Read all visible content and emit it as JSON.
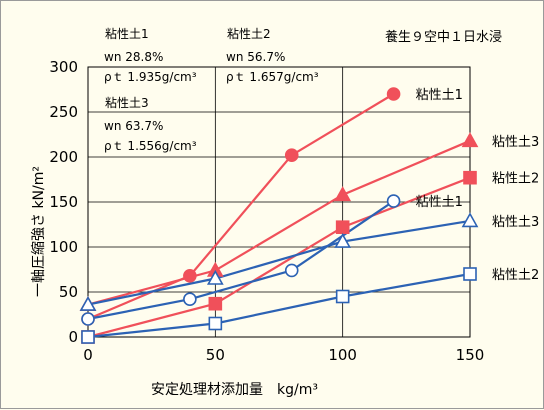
{
  "chart_data": {
    "type": "line",
    "title": "養生９空中１日水浸",
    "xlabel": "安定処理材添加量　kg/m³",
    "ylabel": "一軸圧縮強さ kN/m²",
    "xlim": [
      0,
      150
    ],
    "ylim": [
      0,
      300
    ],
    "xticks": [
      "0",
      "50",
      "100",
      "150"
    ],
    "yticks": [
      "0",
      "50",
      "100",
      "150",
      "200",
      "250",
      "300"
    ],
    "grid": true,
    "colors": {
      "red": "#f0505a",
      "blue": "#2c62b4",
      "background": "#fffdee"
    },
    "series": [
      {
        "name": "粘性土1",
        "color": "#f0505a",
        "marker": "circle-filled",
        "points": [
          [
            0,
            20
          ],
          [
            40,
            68
          ],
          [
            80,
            202
          ],
          [
            120,
            270
          ]
        ]
      },
      {
        "name": "粘性土3",
        "color": "#f0505a",
        "marker": "triangle-filled",
        "points": [
          [
            0,
            36
          ],
          [
            50,
            74
          ],
          [
            100,
            158
          ],
          [
            150,
            218
          ]
        ]
      },
      {
        "name": "粘性土2",
        "color": "#f0505a",
        "marker": "square-filled",
        "points": [
          [
            0,
            0
          ],
          [
            50,
            37
          ],
          [
            100,
            122
          ],
          [
            150,
            177
          ]
        ]
      },
      {
        "name": "粘性土1",
        "color": "#2c62b4",
        "marker": "circle-open",
        "points": [
          [
            0,
            20
          ],
          [
            40,
            42
          ],
          [
            80,
            74
          ],
          [
            120,
            151
          ]
        ]
      },
      {
        "name": "粘性土3",
        "color": "#2c62b4",
        "marker": "triangle-open",
        "points": [
          [
            0,
            36
          ],
          [
            50,
            65
          ],
          [
            100,
            106
          ],
          [
            150,
            129
          ]
        ]
      },
      {
        "name": "粘性土2",
        "color": "#2c62b4",
        "marker": "square-open",
        "points": [
          [
            0,
            0
          ],
          [
            50,
            15
          ],
          [
            100,
            45
          ],
          [
            150,
            70
          ]
        ]
      }
    ],
    "annotations": [
      {
        "name": "粘性土1",
        "lines": [
          "wn 28.8%",
          "ρｔ 1.935g/cm³"
        ]
      },
      {
        "name": "粘性土2",
        "lines": [
          "wn 56.7%",
          "ρｔ 1.657g/cm³"
        ]
      },
      {
        "name": "粘性土3",
        "lines": [
          "wn 63.7%",
          "ρｔ 1.556g/cm³"
        ]
      }
    ]
  }
}
